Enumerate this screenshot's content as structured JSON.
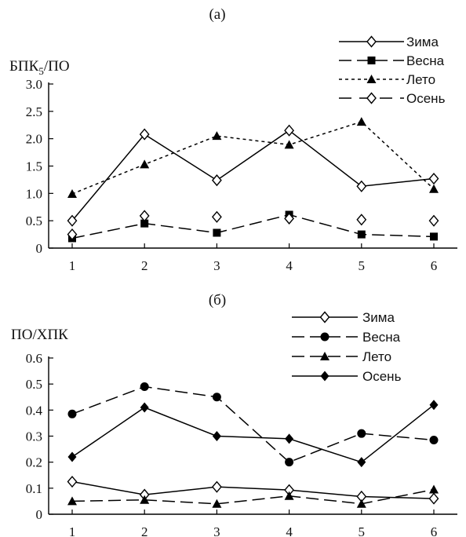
{
  "chart_data": [
    {
      "type": "line",
      "panel_label": "(а)",
      "ylabel": "БПК",
      "ylabel_sub": "5",
      "ylabel_tail": "/ПО",
      "categories": [
        "1",
        "2",
        "3",
        "4",
        "5",
        "6"
      ],
      "ylim": [
        0,
        3.0
      ],
      "yticks": [
        "0",
        "0.5",
        "1.0",
        "1.5",
        "2.0",
        "2.5",
        "3.0"
      ],
      "legend_position": "top-right",
      "series": [
        {
          "name": "Зима",
          "values": [
            0.5,
            2.08,
            1.24,
            2.15,
            1.13,
            1.27
          ],
          "marker": "diamond-open",
          "dash": "solid"
        },
        {
          "name": "Весна",
          "values": [
            0.18,
            0.45,
            0.28,
            0.61,
            0.25,
            0.21
          ],
          "marker": "square",
          "dash": "longdash"
        },
        {
          "name": "Лето",
          "values": [
            0.99,
            1.53,
            2.05,
            1.89,
            2.31,
            1.08
          ],
          "marker": "triangle",
          "dash": "short"
        },
        {
          "name": "Осень",
          "values": [
            0.25,
            0.59,
            0.57,
            0.54,
            0.52,
            0.5
          ],
          "marker": "diamond-open",
          "dash": "none"
        }
      ]
    },
    {
      "type": "line",
      "panel_label": "(б)",
      "ylabel": "ПО/ХПК",
      "categories": [
        "1",
        "2",
        "3",
        "4",
        "5",
        "6"
      ],
      "ylim": [
        0,
        0.6
      ],
      "yticks": [
        "0",
        "0.1",
        "0.2",
        "0.3",
        "0.4",
        "0.5",
        "0.6"
      ],
      "legend_position": "top-right",
      "series": [
        {
          "name": "Зима",
          "values": [
            0.125,
            0.075,
            0.105,
            0.093,
            0.068,
            0.06
          ],
          "marker": "diamond-open",
          "dash": "solid"
        },
        {
          "name": "Весна",
          "values": [
            0.385,
            0.49,
            0.45,
            0.2,
            0.31,
            0.285
          ],
          "marker": "circle",
          "dash": "longdash"
        },
        {
          "name": "Лето",
          "values": [
            0.05,
            0.055,
            0.04,
            0.07,
            0.04,
            0.095
          ],
          "marker": "triangle",
          "dash": "longdash"
        },
        {
          "name": "Осень",
          "values": [
            0.22,
            0.41,
            0.3,
            0.29,
            0.2,
            0.42
          ],
          "marker": "diamond",
          "dash": "solid"
        }
      ]
    }
  ]
}
